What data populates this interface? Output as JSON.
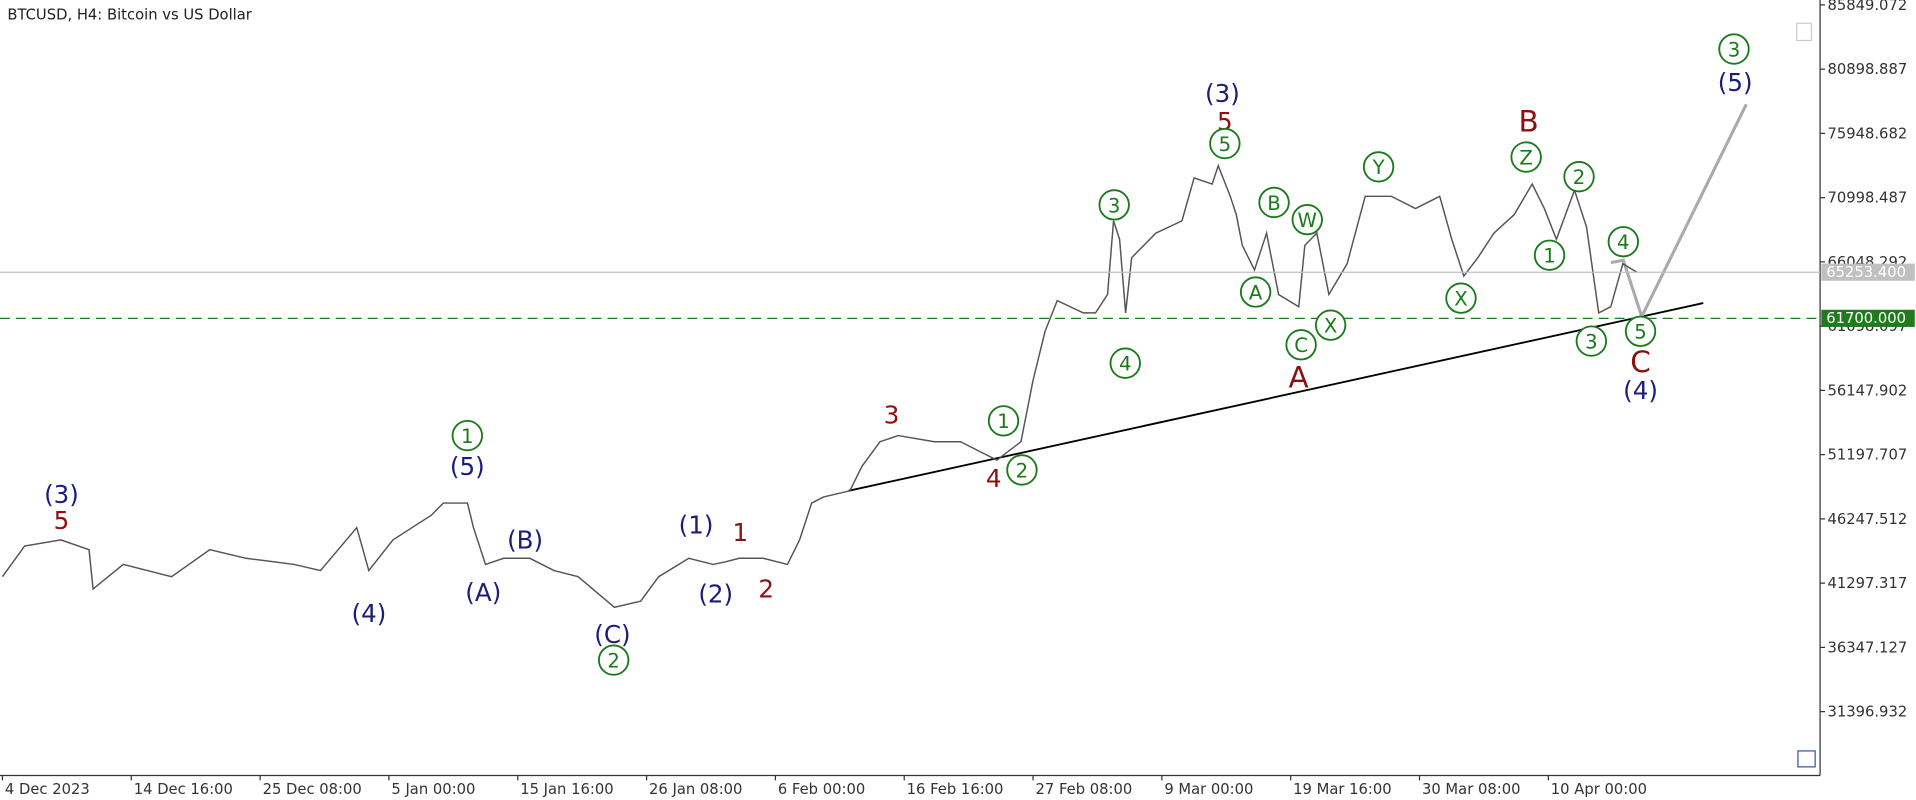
{
  "chart_data": {
    "type": "line",
    "title": "BTCUSD, H4:  Bitcoin vs US Dollar",
    "x": [
      0,
      11,
      29,
      43,
      45,
      60,
      84,
      103,
      121,
      145,
      158,
      176,
      182,
      194,
      213,
      219,
      231,
      234,
      240,
      249,
      262,
      274,
      286,
      304,
      317,
      326,
      341,
      353,
      359,
      366,
      378,
      390,
      396,
      402,
      408,
      421,
      427,
      436,
      445,
      463,
      476,
      488,
      494,
      506,
      512,
      518,
      524,
      537,
      543,
      549,
      552,
      555,
      558,
      561,
      573,
      586,
      592,
      601,
      604,
      610,
      613,
      616,
      622,
      628,
      634,
      644,
      647,
      653,
      659,
      668,
      677,
      690,
      702,
      714,
      720,
      726,
      733,
      741,
      751,
      760,
      766,
      772,
      781,
      787,
      793,
      799,
      805,
      812
    ],
    "series": [
      {
        "name": "BTCUSD",
        "color": "#555555",
        "values": [
          41796,
          44159,
          44632,
          43875,
          40850,
          42741,
          41796,
          43875,
          43214,
          42741,
          42268,
          45577,
          42268,
          44632,
          46522,
          47468,
          47468,
          45577,
          42741,
          43214,
          43214,
          42268,
          41796,
          39432,
          39905,
          41796,
          43214,
          42741,
          42930,
          43214,
          43214,
          42741,
          44632,
          47468,
          47941,
          48413,
          50303,
          52194,
          52667,
          52194,
          52194,
          51249,
          50776,
          52194,
          56921,
          60703,
          63066,
          62121,
          62121,
          63539,
          69211,
          67793,
          62121,
          66375,
          68265,
          69211,
          72519,
          72047,
          73465,
          71101,
          69683,
          67320,
          65429,
          68265,
          63539,
          62593,
          67320,
          68265,
          63539,
          65902,
          71101,
          71101,
          70156,
          71101,
          67793,
          64957,
          66375,
          68265,
          69683,
          72047,
          70156,
          67793,
          71574,
          68738,
          62121,
          62593,
          65902,
          65253.4
        ]
      }
    ],
    "xlim": [
      0,
      903
    ],
    "xticks": [
      {
        "value": 0,
        "label": "4 Dec 2023"
      },
      {
        "value": 64,
        "label": "14 Dec 16:00"
      },
      {
        "value": 128,
        "label": "25 Dec 08:00"
      },
      {
        "value": 192,
        "label": "5 Jan 00:00"
      },
      {
        "value": 256,
        "label": "15 Jan 16:00"
      },
      {
        "value": 320,
        "label": "26 Jan 08:00"
      },
      {
        "value": 384,
        "label": "6 Feb 00:00"
      },
      {
        "value": 448,
        "label": "16 Feb 16:00"
      },
      {
        "value": 512,
        "label": "27 Feb 08:00"
      },
      {
        "value": 576,
        "label": "9 Mar 00:00"
      },
      {
        "value": 640,
        "label": "19 Mar 16:00"
      },
      {
        "value": 704,
        "label": "30 Mar 08:00"
      },
      {
        "value": 768,
        "label": "10 Apr 00:00"
      }
    ],
    "ylim": [
      26480,
      86227
    ],
    "yticks": [
      85849.072,
      80898.887,
      75948.682,
      70998.487,
      66048.292,
      61098.097,
      56147.902,
      51197.707,
      46247.512,
      41297.317,
      36347.127,
      31396.932
    ],
    "price_lines": [
      {
        "value": 65253.4,
        "label": "65253.400",
        "color": "#c0c0c0",
        "dashed": false
      },
      {
        "value": 61700,
        "label": "61700.000",
        "color": "#1e7b1e",
        "dashed": true
      }
    ],
    "annotations": [
      {
        "text": "(3)",
        "color": "#1c1c7c"
      },
      {
        "text": "5",
        "color": "#8b1010"
      },
      {
        "text": "(4)",
        "color": "#1c1c7c"
      },
      {
        "text": "1",
        "color": "#1a7a1a",
        "circled": true
      },
      {
        "text": "(5)",
        "color": "#1c1c7c"
      },
      {
        "text": "(A)",
        "color": "#1c1c7c"
      },
      {
        "text": "(B)",
        "color": "#1c1c7c"
      },
      {
        "text": "(C)",
        "color": "#1c1c7c"
      },
      {
        "text": "2",
        "color": "#1a7a1a",
        "circled": true
      },
      {
        "text": "(1)",
        "color": "#1c1c7c"
      },
      {
        "text": "1",
        "color": "#8b1010"
      },
      {
        "text": "(2)",
        "color": "#1c1c7c"
      },
      {
        "text": "2",
        "color": "#8b1010"
      },
      {
        "text": "3",
        "color": "#8b1010"
      },
      {
        "text": "4",
        "color": "#8b1010"
      },
      {
        "text": "1",
        "color": "#1a7a1a",
        "circled": true
      },
      {
        "text": "2",
        "color": "#1a7a1a",
        "circled": true
      },
      {
        "text": "3",
        "color": "#1a7a1a",
        "circled": true
      },
      {
        "text": "4",
        "color": "#1a7a1a",
        "circled": true
      },
      {
        "text": "(3)",
        "color": "#1c1c7c"
      },
      {
        "text": "5",
        "color": "#8b1010"
      },
      {
        "text": "5",
        "color": "#1a7a1a",
        "circled": true
      },
      {
        "text": "B",
        "color": "#1a7a1a",
        "circled": true
      },
      {
        "text": "W",
        "color": "#1a7a1a",
        "circled": true
      },
      {
        "text": "A",
        "color": "#1a7a1a",
        "circled": true
      },
      {
        "text": "C",
        "color": "#1a7a1a",
        "circled": true
      },
      {
        "text": "A",
        "color": "#8b1010"
      },
      {
        "text": "X",
        "color": "#1a7a1a",
        "circled": true
      },
      {
        "text": "Y",
        "color": "#1a7a1a",
        "circled": true
      },
      {
        "text": "X",
        "color": "#1a7a1a",
        "circled": true
      },
      {
        "text": "B",
        "color": "#8b1010"
      },
      {
        "text": "Z",
        "color": "#1a7a1a",
        "circled": true
      },
      {
        "text": "2",
        "color": "#1a7a1a",
        "circled": true
      },
      {
        "text": "1",
        "color": "#1a7a1a",
        "circled": true
      },
      {
        "text": "4",
        "color": "#1a7a1a",
        "circled": true
      },
      {
        "text": "3",
        "color": "#1a7a1a",
        "circled": true
      },
      {
        "text": "5",
        "color": "#1a7a1a",
        "circled": true
      },
      {
        "text": "C",
        "color": "#8b1010"
      },
      {
        "text": "(4)",
        "color": "#1c1c7c"
      },
      {
        "text": "3",
        "color": "#1a7a1a",
        "circled": true
      },
      {
        "text": "(5)",
        "color": "#1c1c7c"
      }
    ]
  }
}
